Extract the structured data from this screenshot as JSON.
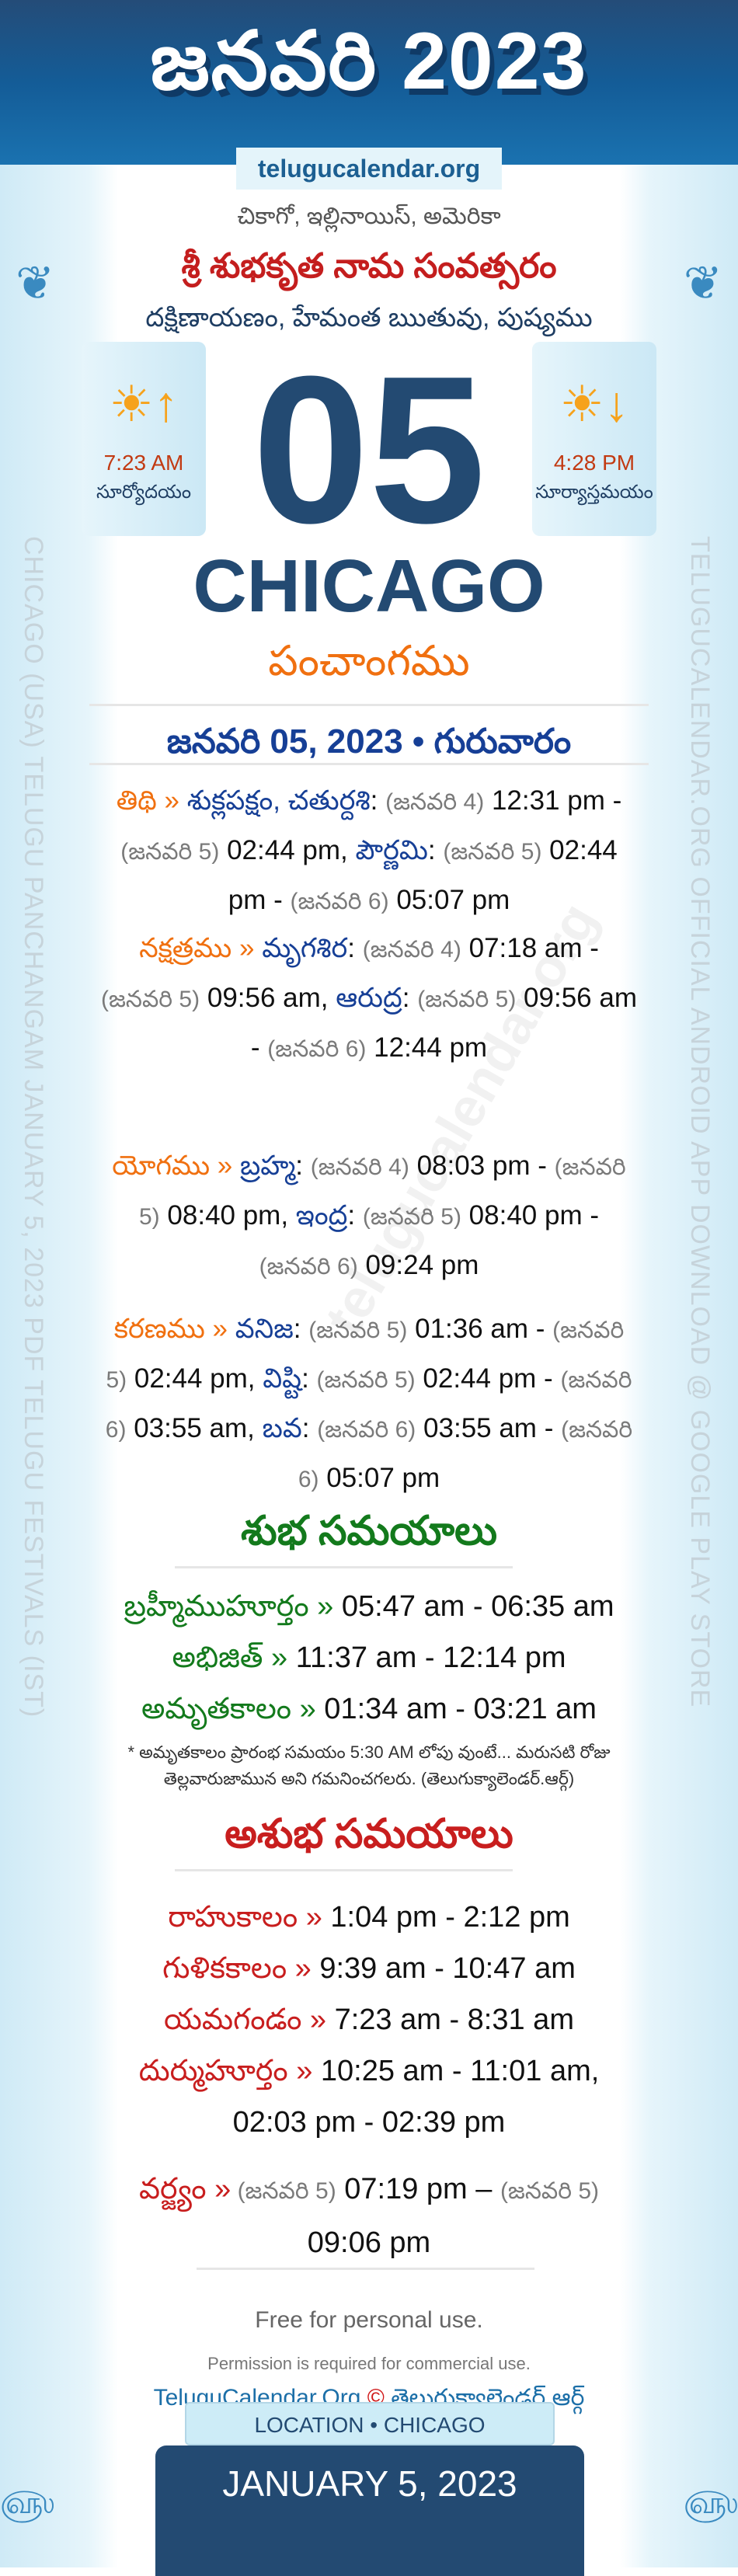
{
  "header": {
    "title": "జనవరి 2023",
    "site": "telugucalendar.org"
  },
  "location_te": "చికాగో, ఇల్లినాయిస్, అమెరికా",
  "samvatsaram": "శ్రీ శుభకృత నామ సంవత్సరం",
  "season": "దక్షిణాయణం, హేమంత ఋతువు, పుష్యము",
  "sunrise": {
    "time": "7:23 AM",
    "label": "సూర్యోదయం",
    "icon": "sunrise-icon"
  },
  "sunset": {
    "time": "4:28 PM",
    "label": "సూర్యాస్తమయం",
    "icon": "sunset-icon"
  },
  "day": "05",
  "city": "CHICAGO",
  "panchangam": "పంచాంగము",
  "date_line": "జనవరి 05, 2023 • గురువారం",
  "side_left": "CHICAGO (USA) TELUGU PANCHANGAM JANUARY 5, 2023 PDF TELUGU FESTIVALS (IST)",
  "side_right": "TELUGUCALENDAR.ORG OFFICIAL ANDROID APP DOWNLOAD @ GOOGLE PLAY STORE",
  "watermark": "telugucalendar.org",
  "panchang": [
    {
      "label": "తిథి »",
      "parts": [
        [
          "b",
          "శుక్లపక్షం, చతుర్దశి"
        ],
        [
          "t",
          ": "
        ],
        [
          "g",
          "(జనవరి 4)"
        ],
        [
          "t",
          " 12:31 pm - "
        ],
        [
          "g",
          "(జనవరి 5)"
        ],
        [
          "t",
          " 02:44 pm, "
        ],
        [
          "b",
          "పౌర్ణమి"
        ],
        [
          "t",
          ": "
        ],
        [
          "g",
          "(జనవరి 5)"
        ],
        [
          "t",
          " 02:44 pm - "
        ],
        [
          "g",
          "(జనవరి 6)"
        ],
        [
          "t",
          " 05:07 pm"
        ]
      ]
    },
    {
      "label": "నక్షత్రము »",
      "parts": [
        [
          "b",
          "మృగశిర"
        ],
        [
          "t",
          ": "
        ],
        [
          "g",
          "(జనవరి 4)"
        ],
        [
          "t",
          " 07:18 am - "
        ],
        [
          "g",
          "(జనవరి 5)"
        ],
        [
          "t",
          " 09:56 am, "
        ],
        [
          "b",
          "ఆరుద్ర"
        ],
        [
          "t",
          ": "
        ],
        [
          "g",
          "(జనవరి 5)"
        ],
        [
          "t",
          " 09:56 am - "
        ],
        [
          "g",
          "(జనవరి 6)"
        ],
        [
          "t",
          " 12:44 pm"
        ]
      ]
    },
    {
      "label": "యోగము »",
      "parts": [
        [
          "b",
          "బ్రహ్మ"
        ],
        [
          "t",
          ": "
        ],
        [
          "g",
          "(జనవరి 4)"
        ],
        [
          "t",
          " 08:03 pm - "
        ],
        [
          "g",
          "(జనవరి 5)"
        ],
        [
          "t",
          " 08:40 pm, "
        ],
        [
          "b",
          "ఇంద్ర"
        ],
        [
          "t",
          ": "
        ],
        [
          "g",
          "(జనవరి 5)"
        ],
        [
          "t",
          " 08:40 pm - "
        ],
        [
          "g",
          "(జనవరి 6)"
        ],
        [
          "t",
          " 09:24 pm"
        ]
      ]
    },
    {
      "label": "కరణము »",
      "parts": [
        [
          "b",
          "వనిజ"
        ],
        [
          "t",
          ": "
        ],
        [
          "g",
          "(జనవరి 5)"
        ],
        [
          "t",
          " 01:36 am - "
        ],
        [
          "g",
          "(జనవరి 5)"
        ],
        [
          "t",
          " 02:44 pm, "
        ],
        [
          "b",
          "విష్టి"
        ],
        [
          "t",
          ": "
        ],
        [
          "g",
          "(జనవరి 5)"
        ],
        [
          "t",
          " 02:44 pm - "
        ],
        [
          "g",
          "(జనవరి 6)"
        ],
        [
          "t",
          " 03:55 am, "
        ],
        [
          "b",
          "బవ"
        ],
        [
          "t",
          ": "
        ],
        [
          "g",
          "(జనవరి 6)"
        ],
        [
          "t",
          " 03:55 am - "
        ],
        [
          "g",
          "(జనవరి 6)"
        ],
        [
          "t",
          " 05:07 pm"
        ]
      ]
    }
  ],
  "shubha": {
    "title": "శుభ సమయాలు",
    "items": [
      {
        "label": "బ్రహ్మీముహూర్తం »",
        "value": " 05:47 am - 06:35 am"
      },
      {
        "label": "అభిజిత్ »",
        "value": " 11:37 am - 12:14 pm"
      },
      {
        "label": "అమృతకాలం »",
        "value": " 01:34 am - 03:21 am"
      }
    ],
    "note": "* అమృతకాలం ప్రారంభ సమయం 5:30 AM లోపు వుంటే... మరుసటి రోజు తెల్లవారుజామున అని గమనించగలరు. (తెలుగుక్యాలెండర్.ఆర్గ్)"
  },
  "ashubha": {
    "title": "అశుభ సమయాలు",
    "items": [
      {
        "label": "రాహుకాలం »",
        "value": " 1:04 pm - 2:12 pm"
      },
      {
        "label": "గుళికకాలం »",
        "value": " 9:39 am - 10:47 am"
      },
      {
        "label": "యమగండం »",
        "value": " 7:23 am - 8:31 am"
      },
      {
        "label": "దుర్ముహూర్తం »",
        "value": " 10:25 am - 11:01 am, 02:03 pm - 02:39 pm"
      }
    ],
    "varjyam": {
      "label": "వర్జ్యం »",
      "d1": " (జనవరి 5)",
      "t1": " 07:19 pm – ",
      "d2": "(జనవరి 5)",
      "t2": " 09:06 pm"
    }
  },
  "footer": {
    "free": "Free for personal use.",
    "permission": "Permission is required for commercial use.",
    "brand_en": "TeluguCalendar.Org",
    "copyright": "©",
    "brand_te": "తెలుగుక్యాలెండర్.ఆర్గ్"
  },
  "location_tab": "LOCATION • CHICAGO",
  "date_en": "JANUARY 5, 2023",
  "colors": {
    "navy": "#234a72",
    "orange": "#f07010",
    "blue": "#163f96",
    "green": "#137a1c",
    "red": "#c81e1e"
  }
}
